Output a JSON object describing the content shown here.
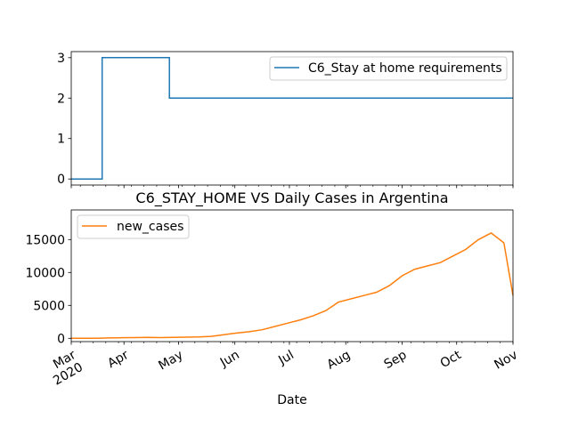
{
  "chart_data": [
    {
      "type": "line",
      "title": "",
      "xlabel": "",
      "ylabel": "",
      "xlim": [
        "2020-03-03",
        "2020-11-01"
      ],
      "ylim": [
        -0.15,
        3.15
      ],
      "yticks": [
        0,
        1,
        2,
        3
      ],
      "grid": false,
      "legend_position": "top-right",
      "series": [
        {
          "name": "C6_Stay at home requirements",
          "color": "#1f77b4",
          "steps": [
            {
              "x": "2020-03-03",
              "y": 0
            },
            {
              "x": "2020-03-20",
              "y": 3
            },
            {
              "x": "2020-04-26",
              "y": 2
            },
            {
              "x": "2020-11-01",
              "y": 2
            }
          ]
        }
      ]
    },
    {
      "type": "line",
      "title": "C6_STAY_HOME VS Daily Cases in Argentina",
      "xlabel": "Date",
      "ylabel": "",
      "xlim": [
        "2020-03-03",
        "2020-11-01"
      ],
      "ylim": [
        -500,
        19500
      ],
      "yticks": [
        0,
        5000,
        10000,
        15000
      ],
      "xtick_labels": [
        "Mar\n2020",
        "Apr",
        "May",
        "Jun",
        "Jul",
        "Aug",
        "Sep",
        "Oct",
        "Nov"
      ],
      "xtick_dates": [
        "2020-03-01",
        "2020-04-01",
        "2020-05-01",
        "2020-06-01",
        "2020-07-01",
        "2020-08-01",
        "2020-09-01",
        "2020-10-01",
        "2020-11-01"
      ],
      "grid": false,
      "legend_position": "top-left",
      "series": [
        {
          "name": "new_cases",
          "color": "#ff7f0e",
          "points": [
            [
              "2020-03-03",
              1
            ],
            [
              "2020-03-10",
              5
            ],
            [
              "2020-03-17",
              15
            ],
            [
              "2020-03-24",
              50
            ],
            [
              "2020-03-31",
              90
            ],
            [
              "2020-04-07",
              110
            ],
            [
              "2020-04-14",
              130
            ],
            [
              "2020-04-21",
              110
            ],
            [
              "2020-04-28",
              130
            ],
            [
              "2020-05-05",
              170
            ],
            [
              "2020-05-12",
              200
            ],
            [
              "2020-05-19",
              300
            ],
            [
              "2020-05-26",
              550
            ],
            [
              "2020-06-02",
              800
            ],
            [
              "2020-06-09",
              1000
            ],
            [
              "2020-06-16",
              1300
            ],
            [
              "2020-06-23",
              1800
            ],
            [
              "2020-06-30",
              2300
            ],
            [
              "2020-07-07",
              2800
            ],
            [
              "2020-07-14",
              3400
            ],
            [
              "2020-07-21",
              4200
            ],
            [
              "2020-07-28",
              5500
            ],
            [
              "2020-08-04",
              6000
            ],
            [
              "2020-08-11",
              6500
            ],
            [
              "2020-08-18",
              7000
            ],
            [
              "2020-08-25",
              8000
            ],
            [
              "2020-09-01",
              9500
            ],
            [
              "2020-09-08",
              10500
            ],
            [
              "2020-09-15",
              11000
            ],
            [
              "2020-09-22",
              11500
            ],
            [
              "2020-09-29",
              12500
            ],
            [
              "2020-10-06",
              13500
            ],
            [
              "2020-10-13",
              15000
            ],
            [
              "2020-10-20",
              16000
            ],
            [
              "2020-10-27",
              14500
            ],
            [
              "2020-11-01",
              6500
            ]
          ]
        }
      ]
    }
  ]
}
